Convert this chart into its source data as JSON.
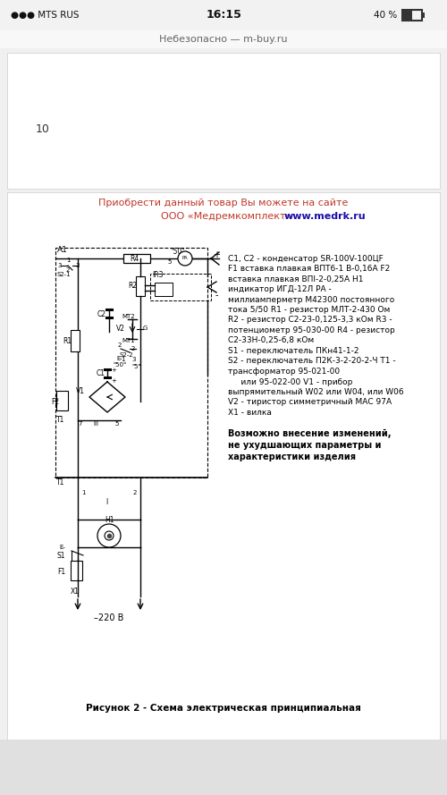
{
  "bg_color": "#f0f0f0",
  "page_bg": "#ffffff",
  "url_bar": "Небезопасно — m-buy.ru",
  "page_num": "10",
  "promo_line1": "Приобрести данный товар Вы можете на сайте",
  "promo_line2_a": "ООО «Медремкомплект» ",
  "promo_line2_b": "www.medrk.ru",
  "promo_color": "#c0392b",
  "url_color": "#1a0dab",
  "components_text": [
    "C1, C2 - конденсатор SR-100V-100ЦF",
    "F1 вставка плавкая ВПТ6-1 В-0,16А F2",
    "вставка плавкая ВПI-2-0,25А H1",
    "индикатор ИГД-12Л РА -",
    "миллиамперметр М42300 постоянного",
    "тока 5/50 R1 - резистор МЛТ-2-430 Ом",
    "R2 - резистор С2-23-0,125-3,3 кОм R3 -",
    "потенциометр 95-030-00 R4 - резистор",
    "С2-33Н-0,25-6,8 кОм",
    "S1 - переключатель ПКн41-1-2",
    "S2 - переключатель П2К-3-2-20-2-Ч T1 -",
    "трансформатор 95-021-00",
    "     или 95-022-00 V1 - прибор",
    "выпрямительный W02 или W04, или W06",
    "V2 - тиристор симметричный МАС 97А",
    "X1 - вилка"
  ],
  "note_text": [
    "Возможно внесение изменений,",
    "не ухудшающих параметры и",
    "характеристики изделия"
  ],
  "caption": "Рисунок 2 - Схема электрическая принципиальная"
}
